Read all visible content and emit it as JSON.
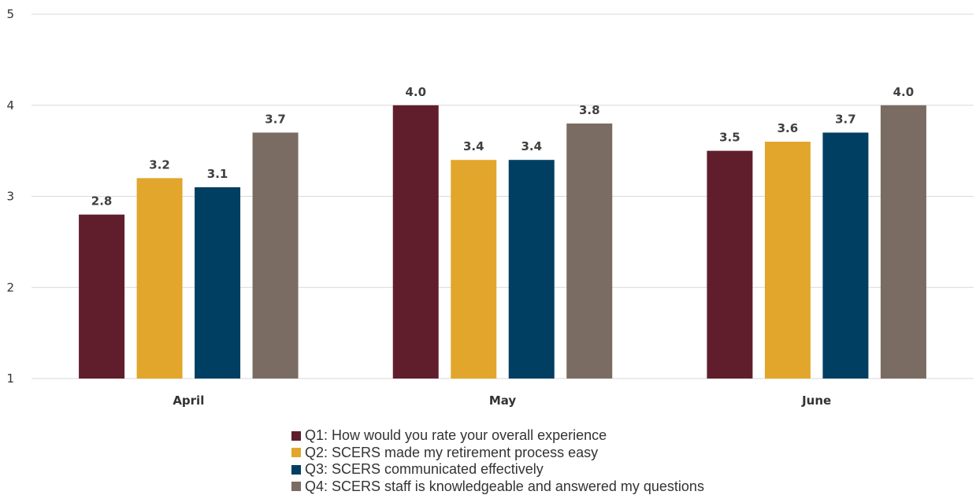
{
  "chart_data": {
    "type": "bar",
    "title": "",
    "xlabel": "",
    "ylabel": "",
    "categories": [
      "April",
      "May",
      "June"
    ],
    "ylim": [
      1,
      5
    ],
    "yticks": [
      1,
      2,
      3,
      4,
      5
    ],
    "grid": true,
    "legend_position": "bottom",
    "series": [
      {
        "name": "Q1: How would you rate your overall experience",
        "color": "#601e2c",
        "values": [
          2.8,
          4.0,
          3.5
        ],
        "labels": [
          "2.8",
          "4.0",
          "3.5"
        ]
      },
      {
        "name": "Q2: SCERS made my retirement process easy",
        "color": "#e2a62c",
        "values": [
          3.2,
          3.4,
          3.6
        ],
        "labels": [
          "3.2",
          "3.4",
          "3.6"
        ]
      },
      {
        "name": "Q3: SCERS communicated effectively",
        "color": "#003f62",
        "values": [
          3.1,
          3.4,
          3.7
        ],
        "labels": [
          "3.1",
          "3.4",
          "3.7"
        ]
      },
      {
        "name": "Q4: SCERS staff is knowledgeable and answered my questions",
        "color": "#7a6c62",
        "values": [
          3.7,
          3.8,
          4.0
        ],
        "labels": [
          "3.7",
          "3.8",
          "4.0"
        ]
      }
    ]
  }
}
